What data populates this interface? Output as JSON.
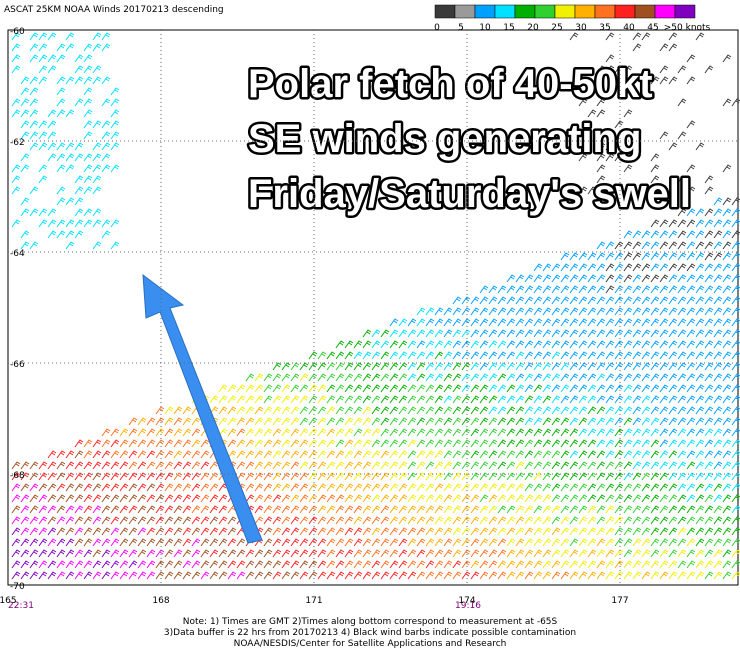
{
  "header": {
    "title": "ASCAT 25KM NOAA Winds 20170213 descending"
  },
  "colorbar": {
    "colors": [
      "#3a3a3a",
      "#9a9a9a",
      "#00a0ff",
      "#00e0ff",
      "#00b000",
      "#30d030",
      "#f0f000",
      "#ffb000",
      "#ff7020",
      "#ff2020",
      "#a05020",
      "#ff00ff",
      "#8000c0"
    ],
    "labels": [
      "0",
      "5",
      "10",
      "15",
      "20",
      "25",
      "30",
      "35",
      "40",
      "45",
      ">50 knots"
    ]
  },
  "axes": {
    "lat_labels": [
      "-60",
      "-62",
      "-64",
      "-66",
      "-68",
      "-70"
    ],
    "lon_labels": [
      "165",
      "168",
      "171",
      "174",
      "177"
    ]
  },
  "time_labels": [
    "22:31",
    "19:16"
  ],
  "annotation": [
    "Polar fetch of 40-50kt",
    "SE winds generating",
    "Friday/Saturday's swell"
  ],
  "notes": [
    "Note: 1) Times are GMT 2)Times along bottom correspond to measurement at -65S",
    "3)Data buffer is 22 hrs from 20170213 4) Black wind barbs indicate possible contamination",
    "NOAA/NESDIS/Center for Satellite Applications and Research"
  ]
}
